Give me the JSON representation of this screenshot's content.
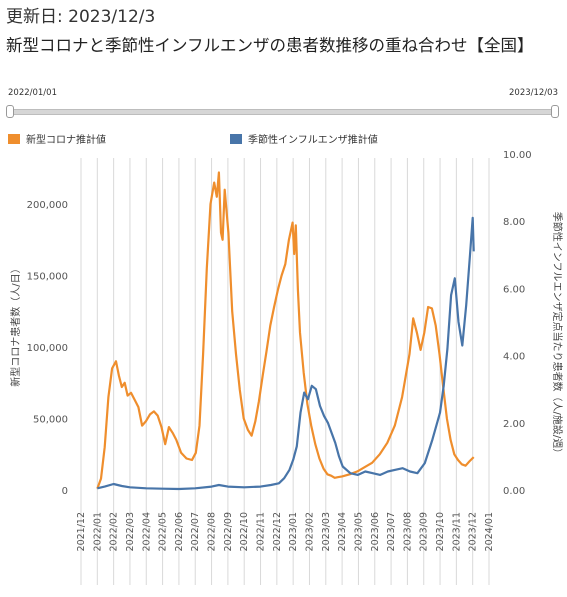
{
  "header": {
    "updated": "更新日: 2023/12/3",
    "title": "新型コロナと季節性インフルエンザの患者数推移の重ね合わせ【全国】"
  },
  "range_slider": {
    "start": "2022/01/01",
    "end": "2023/12/03"
  },
  "colors": {
    "covid": "#ef8e2d",
    "flu": "#4875a9",
    "grid": "#d9d9d9",
    "axis": "#888888"
  },
  "chart_data": {
    "type": "line",
    "legend_position": "top-left",
    "grid": true,
    "x_tick_labels": [
      "2021/12",
      "2022/01",
      "2022/02",
      "2022/03",
      "2022/04",
      "2022/05",
      "2022/06",
      "2022/07",
      "2022/08",
      "2022/09",
      "2022/10",
      "2022/11",
      "2022/12",
      "2023/01",
      "2023/02",
      "2023/03",
      "2023/04",
      "2023/05",
      "2023/06",
      "2023/07",
      "2023/08",
      "2023/09",
      "2023/10",
      "2023/11",
      "2023/12",
      "2024/01"
    ],
    "y_left": {
      "label": "新型コロナ患者数（人/日）",
      "ticks": [
        "0",
        "50,000",
        "100,000",
        "150,000",
        "200,000"
      ],
      "range": [
        0,
        225000
      ]
    },
    "y_right": {
      "label": "季節性インフルエンザ定点当たり患者数（人/施設/週）",
      "ticks": [
        "0.00",
        "2.00",
        "4.00",
        "6.00",
        "8.00",
        "10.00"
      ],
      "range": [
        0,
        10
      ]
    },
    "series": [
      {
        "name": "新型コロナ推計値",
        "axis": "left",
        "color": "#ef8e2d",
        "points": [
          [
            "2022-01-01",
            1000
          ],
          [
            "2022-01-08",
            8000
          ],
          [
            "2022-01-15",
            30000
          ],
          [
            "2022-01-22",
            65000
          ],
          [
            "2022-01-29",
            85000
          ],
          [
            "2022-02-05",
            90000
          ],
          [
            "2022-02-10",
            80000
          ],
          [
            "2022-02-15",
            72000
          ],
          [
            "2022-02-20",
            75000
          ],
          [
            "2022-02-25",
            66000
          ],
          [
            "2022-03-03",
            68000
          ],
          [
            "2022-03-10",
            63000
          ],
          [
            "2022-03-17",
            58000
          ],
          [
            "2022-03-24",
            45000
          ],
          [
            "2022-03-31",
            48000
          ],
          [
            "2022-04-08",
            53000
          ],
          [
            "2022-04-15",
            55000
          ],
          [
            "2022-04-22",
            52000
          ],
          [
            "2022-04-29",
            44000
          ],
          [
            "2022-05-06",
            32000
          ],
          [
            "2022-05-13",
            44000
          ],
          [
            "2022-05-20",
            40000
          ],
          [
            "2022-05-27",
            35000
          ],
          [
            "2022-06-05",
            26000
          ],
          [
            "2022-06-15",
            22000
          ],
          [
            "2022-06-25",
            21000
          ],
          [
            "2022-07-02",
            26000
          ],
          [
            "2022-07-09",
            45000
          ],
          [
            "2022-07-16",
            95000
          ],
          [
            "2022-07-23",
            155000
          ],
          [
            "2022-07-30",
            200000
          ],
          [
            "2022-08-06",
            215000
          ],
          [
            "2022-08-11",
            205000
          ],
          [
            "2022-08-15",
            222000
          ],
          [
            "2022-08-19",
            180000
          ],
          [
            "2022-08-22",
            175000
          ],
          [
            "2022-08-26",
            210000
          ],
          [
            "2022-09-02",
            180000
          ],
          [
            "2022-09-09",
            125000
          ],
          [
            "2022-09-16",
            95000
          ],
          [
            "2022-09-23",
            70000
          ],
          [
            "2022-09-30",
            50000
          ],
          [
            "2022-10-08",
            42000
          ],
          [
            "2022-10-15",
            38000
          ],
          [
            "2022-10-22",
            48000
          ],
          [
            "2022-10-29",
            62000
          ],
          [
            "2022-11-05",
            80000
          ],
          [
            "2022-11-12",
            97000
          ],
          [
            "2022-11-19",
            115000
          ],
          [
            "2022-11-26",
            128000
          ],
          [
            "2022-12-03",
            140000
          ],
          [
            "2022-12-10",
            150000
          ],
          [
            "2022-12-17",
            158000
          ],
          [
            "2022-12-24",
            175000
          ],
          [
            "2022-12-31",
            187000
          ],
          [
            "2023-01-03",
            165000
          ],
          [
            "2023-01-06",
            185000
          ],
          [
            "2023-01-10",
            140000
          ],
          [
            "2023-01-14",
            110000
          ],
          [
            "2023-01-21",
            82000
          ],
          [
            "2023-01-28",
            60000
          ],
          [
            "2023-02-04",
            45000
          ],
          [
            "2023-02-11",
            32000
          ],
          [
            "2023-02-18",
            22000
          ],
          [
            "2023-02-25",
            15000
          ],
          [
            "2023-03-04",
            11000
          ],
          [
            "2023-03-11",
            10000
          ],
          [
            "2023-03-18",
            8500
          ],
          [
            "2023-03-25",
            9000
          ],
          [
            "2023-04-01",
            9500
          ],
          [
            "2023-04-15",
            11000
          ],
          [
            "2023-04-29",
            13000
          ],
          [
            "2023-05-13",
            16000
          ],
          [
            "2023-05-27",
            19000
          ],
          [
            "2023-06-10",
            25000
          ],
          [
            "2023-06-24",
            33000
          ],
          [
            "2023-07-08",
            45000
          ],
          [
            "2023-07-22",
            65000
          ],
          [
            "2023-07-29",
            80000
          ],
          [
            "2023-08-05",
            95000
          ],
          [
            "2023-08-12",
            120000
          ],
          [
            "2023-08-19",
            110000
          ],
          [
            "2023-08-26",
            98000
          ],
          [
            "2023-09-02",
            110000
          ],
          [
            "2023-09-09",
            128000
          ],
          [
            "2023-09-16",
            127000
          ],
          [
            "2023-09-23",
            115000
          ],
          [
            "2023-09-30",
            95000
          ],
          [
            "2023-10-07",
            72000
          ],
          [
            "2023-10-14",
            50000
          ],
          [
            "2023-10-21",
            35000
          ],
          [
            "2023-10-28",
            25000
          ],
          [
            "2023-11-04",
            21000
          ],
          [
            "2023-11-11",
            18000
          ],
          [
            "2023-11-18",
            17000
          ],
          [
            "2023-11-25",
            20000
          ],
          [
            "2023-12-03",
            23000
          ]
        ]
      },
      {
        "name": "季節性インフルエンザ推計値",
        "axis": "right",
        "color": "#4875a9",
        "points": [
          [
            "2022-01-01",
            0.05
          ],
          [
            "2022-01-15",
            0.1
          ],
          [
            "2022-02-01",
            0.18
          ],
          [
            "2022-02-15",
            0.12
          ],
          [
            "2022-03-01",
            0.08
          ],
          [
            "2022-04-01",
            0.05
          ],
          [
            "2022-05-01",
            0.04
          ],
          [
            "2022-06-01",
            0.03
          ],
          [
            "2022-07-01",
            0.05
          ],
          [
            "2022-08-01",
            0.1
          ],
          [
            "2022-08-15",
            0.15
          ],
          [
            "2022-09-01",
            0.1
          ],
          [
            "2022-10-01",
            0.08
          ],
          [
            "2022-11-01",
            0.1
          ],
          [
            "2022-11-20",
            0.15
          ],
          [
            "2022-12-05",
            0.2
          ],
          [
            "2022-12-15",
            0.35
          ],
          [
            "2022-12-25",
            0.6
          ],
          [
            "2023-01-01",
            0.9
          ],
          [
            "2023-01-08",
            1.3
          ],
          [
            "2023-01-15",
            2.3
          ],
          [
            "2023-01-22",
            2.9
          ],
          [
            "2023-01-29",
            2.7
          ],
          [
            "2023-02-05",
            3.1
          ],
          [
            "2023-02-12",
            3.0
          ],
          [
            "2023-02-19",
            2.5
          ],
          [
            "2023-02-26",
            2.2
          ],
          [
            "2023-03-05",
            2.0
          ],
          [
            "2023-03-12",
            1.7
          ],
          [
            "2023-03-19",
            1.4
          ],
          [
            "2023-03-26",
            1.0
          ],
          [
            "2023-04-02",
            0.7
          ],
          [
            "2023-04-16",
            0.5
          ],
          [
            "2023-04-30",
            0.45
          ],
          [
            "2023-05-14",
            0.55
          ],
          [
            "2023-05-28",
            0.5
          ],
          [
            "2023-06-11",
            0.45
          ],
          [
            "2023-06-25",
            0.55
          ],
          [
            "2023-07-09",
            0.6
          ],
          [
            "2023-07-23",
            0.65
          ],
          [
            "2023-08-06",
            0.55
          ],
          [
            "2023-08-20",
            0.5
          ],
          [
            "2023-09-03",
            0.8
          ],
          [
            "2023-09-17",
            1.5
          ],
          [
            "2023-10-01",
            2.3
          ],
          [
            "2023-10-08",
            3.1
          ],
          [
            "2023-10-15",
            4.2
          ],
          [
            "2023-10-22",
            5.8
          ],
          [
            "2023-10-29",
            6.3
          ],
          [
            "2023-11-05",
            5.0
          ],
          [
            "2023-11-12",
            4.3
          ],
          [
            "2023-11-19",
            5.5
          ],
          [
            "2023-11-26",
            7.0
          ],
          [
            "2023-12-01",
            8.1
          ],
          [
            "2023-12-03",
            7.1
          ]
        ]
      }
    ]
  }
}
